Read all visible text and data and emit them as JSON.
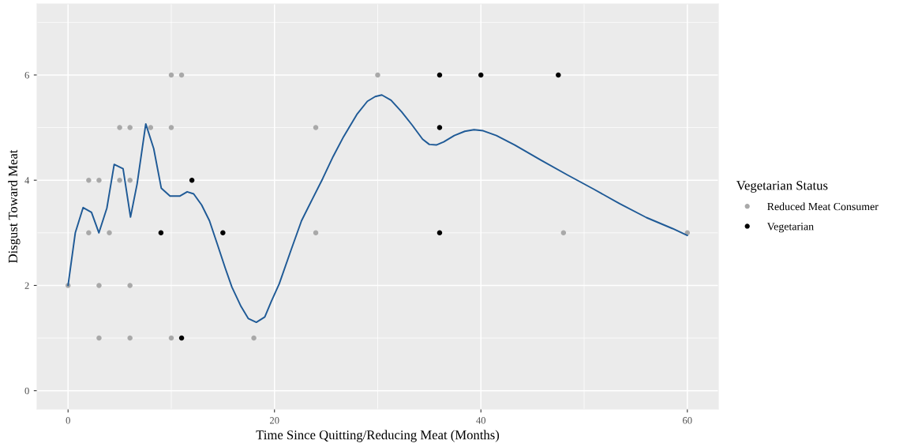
{
  "chart_data": {
    "type": "scatter",
    "xlabel": "Time Since Quitting/Reducing Meat (Months)",
    "ylabel": "Disgust Toward Meat",
    "legend_title": "Vegetarian Status",
    "xlim": [
      -3,
      63
    ],
    "ylim": [
      -0.35,
      7.35
    ],
    "xticks": [
      0,
      20,
      40,
      60
    ],
    "yticks": [
      0,
      2,
      4,
      6
    ],
    "grid": true,
    "legend": "right",
    "marker": "circle",
    "series": [
      {
        "name": "Reduced Meat Consumer",
        "color": "#a9a9a9",
        "x": [
          0,
          2,
          2,
          3,
          3,
          3,
          4,
          5,
          5,
          6,
          6,
          6,
          6,
          8,
          10,
          10,
          10,
          11,
          18,
          24,
          24,
          30,
          48,
          60
        ],
        "values": [
          2,
          4,
          3,
          4,
          2,
          1,
          3,
          5,
          4,
          5,
          4,
          2,
          1,
          5,
          6,
          5,
          1,
          6,
          1,
          5,
          3,
          6,
          3,
          3
        ]
      },
      {
        "name": "Vegetarian",
        "color": "#000000",
        "x": [
          9,
          11,
          12,
          15,
          36,
          36,
          36,
          40,
          47.5
        ],
        "values": [
          3,
          1,
          4,
          3,
          6,
          5,
          3,
          6,
          6
        ]
      },
      {
        "type": "line",
        "marker": "none",
        "color": "#1f5a96",
        "x": [
          0,
          0.7,
          1.46,
          2.27,
          2.99,
          3.76,
          4.47,
          5.33,
          6.05,
          6.69,
          7.53,
          8.3,
          9.03,
          9.88,
          10.85,
          11.54,
          12.17,
          12.94,
          13.7,
          14.47,
          15.23,
          15.87,
          16.76,
          17.47,
          18.24,
          19.06,
          19.7,
          20.46,
          21.6,
          22.62,
          23.64,
          24.67,
          25.68,
          26.7,
          27.98,
          29.0,
          29.76,
          30.4,
          31.29,
          32.32,
          33.33,
          34.35,
          35.0,
          35.68,
          36.4,
          37.42,
          38.44,
          39.33,
          40.22,
          41.5,
          43.28,
          45.83,
          48.38,
          50.93,
          53.48,
          56.04,
          58.58,
          60
        ],
        "values": [
          2.0,
          3.0,
          3.48,
          3.39,
          3.0,
          3.47,
          4.3,
          4.22,
          3.3,
          3.93,
          5.07,
          4.6,
          3.85,
          3.7,
          3.7,
          3.78,
          3.74,
          3.53,
          3.23,
          2.78,
          2.33,
          1.97,
          1.6,
          1.37,
          1.3,
          1.4,
          1.7,
          2.03,
          2.67,
          3.23,
          3.63,
          4.03,
          4.45,
          4.83,
          5.25,
          5.5,
          5.59,
          5.62,
          5.52,
          5.3,
          5.05,
          4.78,
          4.68,
          4.67,
          4.73,
          4.85,
          4.93,
          4.96,
          4.94,
          4.85,
          4.67,
          4.38,
          4.1,
          3.83,
          3.55,
          3.29,
          3.08,
          2.95
        ]
      }
    ]
  }
}
